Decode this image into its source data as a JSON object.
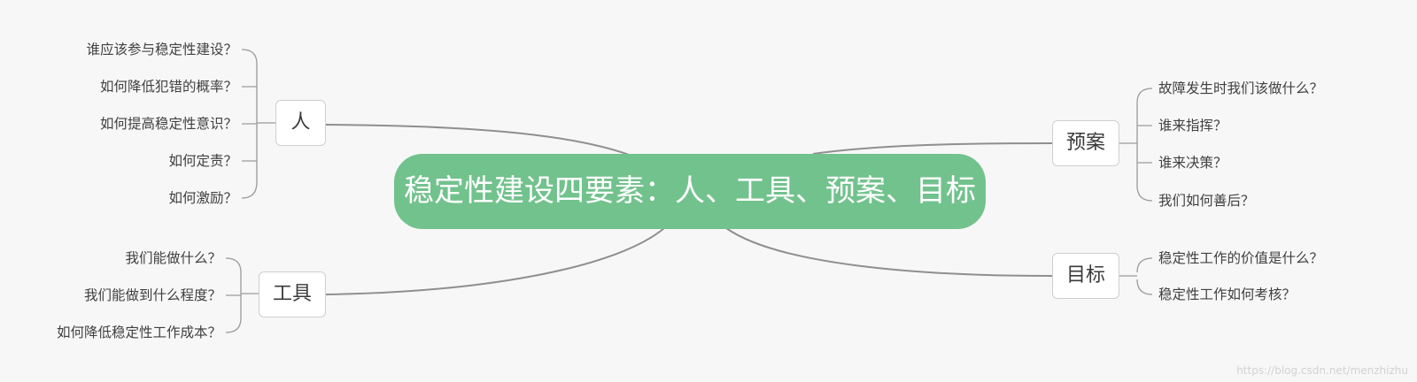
{
  "mindmap": {
    "center": {
      "label": "稳定性建设四要素：人、工具、预案、目标"
    },
    "branches": [
      {
        "id": "people",
        "label": "人",
        "leaves": [
          "谁应该参与稳定性建设？",
          "如何降低犯错的概率？",
          "如何提高稳定性意识？",
          "如何定责？",
          "如何激励？"
        ]
      },
      {
        "id": "tools",
        "label": "工具",
        "leaves": [
          "我们能做什么？",
          "我们能做到什么程度？",
          "如何降低稳定性工作成本？"
        ]
      },
      {
        "id": "plan",
        "label": "预案",
        "leaves": [
          "故障发生时我们该做什么？",
          "谁来指挥？",
          "谁来决策？",
          "我们如何善后？"
        ]
      },
      {
        "id": "goal",
        "label": "目标",
        "leaves": [
          "稳定性工作的价值是什么？",
          "稳定性工作如何考核？"
        ]
      }
    ]
  },
  "watermark": "https://blog.csdn.net/menzhizhu",
  "colors": {
    "center_fill": "#72c28d",
    "line": "#8f8f8f",
    "background": "#f7f7f7"
  }
}
